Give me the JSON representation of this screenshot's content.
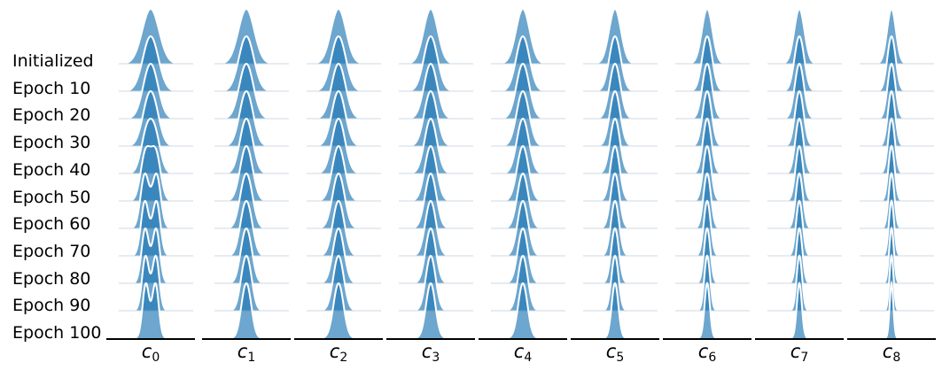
{
  "chart_data": {
    "type": "ridgeline",
    "title": "",
    "xlabel": "",
    "ylabel": "",
    "row_labels": [
      "Initialized",
      "Epoch 10",
      "Epoch 20",
      "Epoch 30",
      "Epoch 40",
      "Epoch 50",
      "Epoch 60",
      "Epoch 70",
      "Epoch 80",
      "Epoch 90",
      "Epoch 100"
    ],
    "columns": [
      {
        "symbol": "c",
        "subscript": "0"
      },
      {
        "symbol": "c",
        "subscript": "1"
      },
      {
        "symbol": "c",
        "subscript": "2"
      },
      {
        "symbol": "c",
        "subscript": "3"
      },
      {
        "symbol": "c",
        "subscript": "4"
      },
      {
        "symbol": "c",
        "subscript": "5"
      },
      {
        "symbol": "c",
        "subscript": "6"
      },
      {
        "symbol": "c",
        "subscript": "7"
      },
      {
        "symbol": "c",
        "subscript": "8"
      }
    ],
    "column_peak_width": [
      0.19,
      0.18,
      0.17,
      0.16,
      0.155,
      0.135,
      0.12,
      0.115,
      0.1
    ],
    "column_end_width_ratio": [
      0.6,
      0.62,
      0.68,
      0.66,
      0.68,
      0.56,
      0.5,
      0.5,
      0.42
    ],
    "column_bimodality": [
      1.0,
      0.5,
      0.05,
      0.0,
      0.0,
      0.0,
      0.0,
      0.0,
      0.0
    ],
    "x_range": [
      -1,
      1
    ],
    "grid": false,
    "legend": "none",
    "colors": {
      "fill": "#1f77b4",
      "fill_opacity": 0.65,
      "outline": "#ffffff",
      "baseline": "#cfd8e3",
      "axis": "#000000"
    }
  }
}
